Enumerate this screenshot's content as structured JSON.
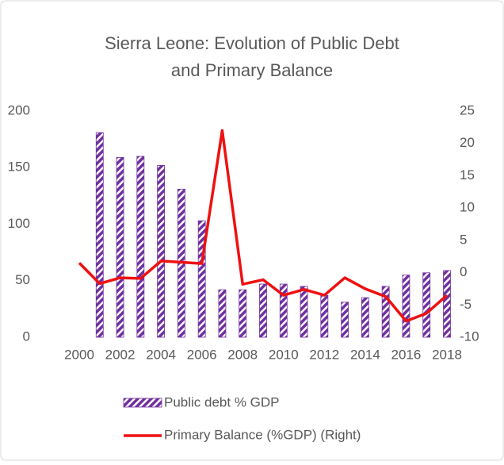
{
  "chart_data": {
    "type": "bar_line",
    "title": "Sierra Leone: Evolution of Public Debt",
    "subtitle": "and Primary Balance",
    "categories": [
      "2000",
      null,
      "2002",
      null,
      "2004",
      null,
      "2006",
      null,
      "2008",
      null,
      "2010",
      null,
      "2012",
      null,
      "2014",
      null,
      "2016",
      null,
      "2018"
    ],
    "series": [
      {
        "name": "Public debt % GDP",
        "type": "bar",
        "color": "#7030a0",
        "values": [
          null,
          181,
          159,
          160,
          152,
          131,
          103,
          42,
          42,
          47,
          47,
          45,
          37,
          31,
          35,
          45,
          55,
          57,
          59
        ]
      },
      {
        "name": "Primary Balance (%GDP) (Right)",
        "type": "line",
        "axis": "y2",
        "color": "#ee1111",
        "values": [
          1.5,
          -1.7,
          -0.8,
          -0.9,
          1.8,
          1.6,
          1.4,
          22,
          -1.8,
          -1.1,
          -3.5,
          -2.6,
          -3.5,
          -0.8,
          -2.5,
          -3.7,
          -7.5,
          -6.3,
          -3.5
        ]
      }
    ],
    "ylim": [
      0,
      200
    ],
    "yticks": [
      0,
      50,
      100,
      150,
      200
    ],
    "y2lim": [
      -10,
      25
    ],
    "y2ticks": [
      -10,
      -5,
      0,
      5,
      10,
      15,
      20,
      25
    ],
    "legend": "bottom",
    "grid": false
  }
}
